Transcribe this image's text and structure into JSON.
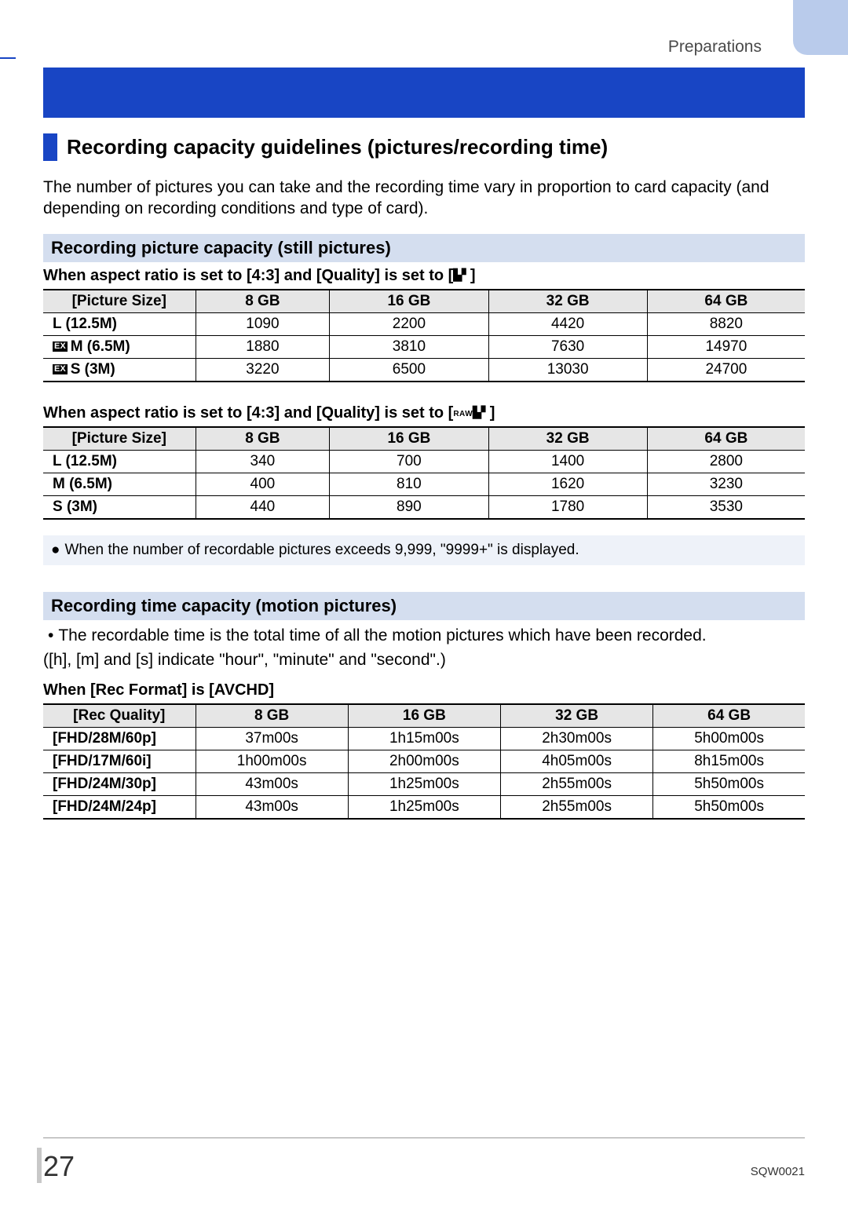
{
  "colors": {
    "accent_blue": "#1845c4",
    "tab_blue": "#b9cbeb",
    "section_bg": "#d4deef",
    "note_bg": "#eef2f9",
    "table_header_bg": "#e6e6e6",
    "text": "#000000",
    "muted": "#4a4a4a"
  },
  "header": {
    "chapter": "Preparations"
  },
  "main_heading": "Recording capacity guidelines (pictures/recording time)",
  "intro": "The number of pictures you can take and the recording time vary in proportion to card capacity (and depending on recording conditions and type of card).",
  "section1": {
    "title": "Recording picture capacity (still pictures)",
    "cond1_prefix": "When aspect ratio is set to [4:3] and [Quality] is set to [",
    "cond1_suffix": "]",
    "table1": {
      "columns": [
        "[Picture Size]",
        "8 GB",
        "16 GB",
        "32 GB",
        "64 GB"
      ],
      "rows": [
        {
          "label": "L (12.5M)",
          "ex": false,
          "cells": [
            "1090",
            "2200",
            "4420",
            "8820"
          ]
        },
        {
          "label": "M (6.5M)",
          "ex": true,
          "cells": [
            "1880",
            "3810",
            "7630",
            "14970"
          ]
        },
        {
          "label": "S (3M)",
          "ex": true,
          "cells": [
            "3220",
            "6500",
            "13030",
            "24700"
          ]
        }
      ]
    },
    "cond2_prefix": "When aspect ratio is set to [4:3] and [Quality] is set to [",
    "cond2_raw": "RAW",
    "cond2_suffix": "]",
    "table2": {
      "columns": [
        "[Picture Size]",
        "8 GB",
        "16 GB",
        "32 GB",
        "64 GB"
      ],
      "rows": [
        {
          "label": "L (12.5M)",
          "cells": [
            "340",
            "700",
            "1400",
            "2800"
          ]
        },
        {
          "label": "M (6.5M)",
          "cells": [
            "400",
            "810",
            "1620",
            "3230"
          ]
        },
        {
          "label": "S (3M)",
          "cells": [
            "440",
            "890",
            "1780",
            "3530"
          ]
        }
      ]
    },
    "note": "When the number of recordable pictures exceeds 9,999, \"9999+\" is displayed."
  },
  "section2": {
    "title": "Recording time capacity (motion pictures)",
    "bullet": "The recordable time is the total time of all the motion pictures which have been recorded.",
    "legend": "([h], [m] and [s] indicate \"hour\", \"minute\" and \"second\".)",
    "cond": "When [Rec Format] is [AVCHD]",
    "table": {
      "columns": [
        "[Rec Quality]",
        "8 GB",
        "16 GB",
        "32 GB",
        "64 GB"
      ],
      "rows": [
        {
          "label": "[FHD/28M/60p]",
          "cells": [
            "37m00s",
            "1h15m00s",
            "2h30m00s",
            "5h00m00s"
          ]
        },
        {
          "label": "[FHD/17M/60i]",
          "cells": [
            "1h00m00s",
            "2h00m00s",
            "4h05m00s",
            "8h15m00s"
          ]
        },
        {
          "label": "[FHD/24M/30p]",
          "cells": [
            "43m00s",
            "1h25m00s",
            "2h55m00s",
            "5h50m00s"
          ]
        },
        {
          "label": "[FHD/24M/24p]",
          "cells": [
            "43m00s",
            "1h25m00s",
            "2h55m00s",
            "5h50m00s"
          ]
        }
      ]
    }
  },
  "footer": {
    "page": "27",
    "doc_code": "SQW0021"
  },
  "badges": {
    "ex": "EX"
  }
}
